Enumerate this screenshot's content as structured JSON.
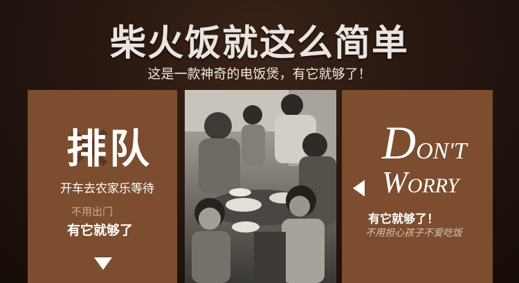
{
  "header": {
    "title": "柴火饭就这么简单",
    "subtitle": "这是一款神奇的电饭煲，有它就够了！"
  },
  "left_panel": {
    "headline": "排队",
    "line1": "开车去农家乐等待",
    "line2": "不用出门",
    "line3": "有它就够了"
  },
  "right_panel": {
    "dont_cap": "D",
    "dont_rest": "ON'T",
    "worry_cap": "W",
    "worry_rest": "ORRY",
    "line1": "有它就够了！",
    "line2": "不用担心孩子不爱吃饭"
  },
  "colors": {
    "panel": "#7c4d2e",
    "background": "#241510"
  },
  "icons": {
    "down": "triangle-down-icon",
    "left": "triangle-left-icon"
  }
}
